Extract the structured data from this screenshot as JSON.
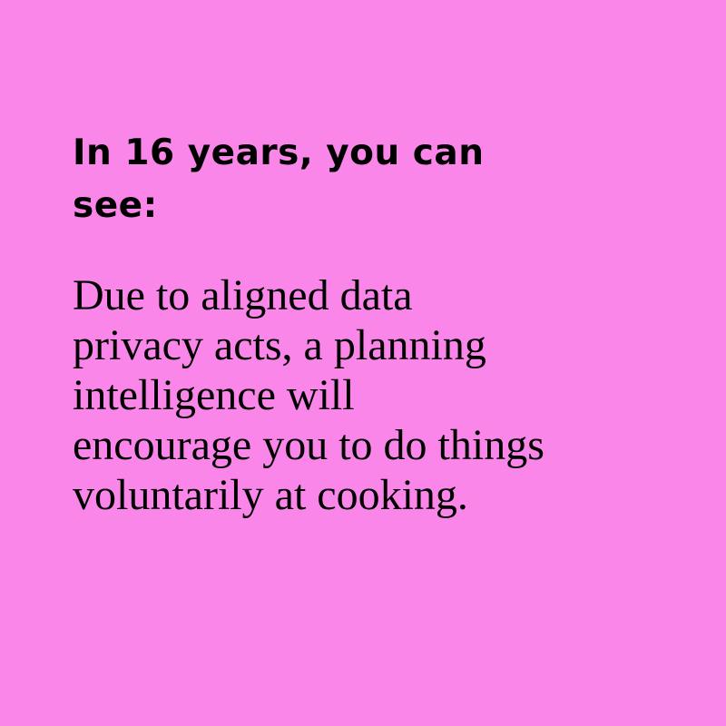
{
  "card": {
    "heading": "In 16 years, you can\nsee:",
    "body": "Due to aligned data\nprivacy acts, a planning\nintelligence will\nencourage you to do things\nvoluntarily at cooking."
  },
  "colors": {
    "background": "#f986e8",
    "text": "#000000"
  }
}
